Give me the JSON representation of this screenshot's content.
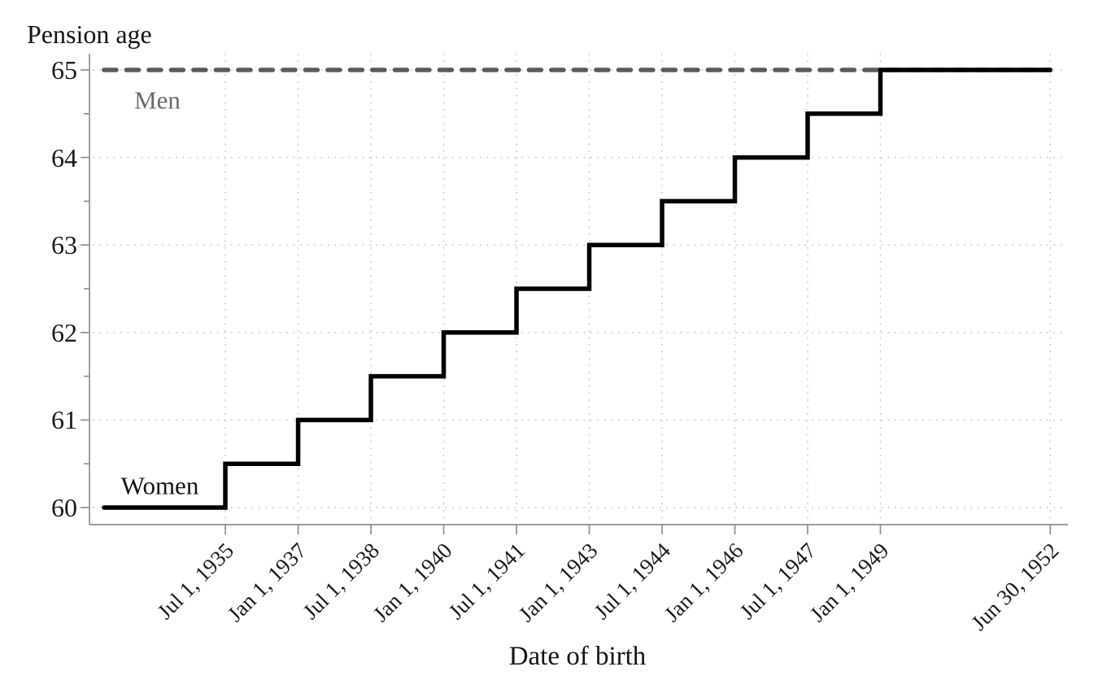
{
  "chart_data": {
    "type": "line",
    "title": "Pension age",
    "xlabel": "Date of birth",
    "ylabel": "Pension age",
    "xlim": [
      1932.7,
      1952.83
    ],
    "ylim": [
      60,
      65
    ],
    "grid": "dotted",
    "legend_position": "inline-annotations",
    "y_ticks": [
      {
        "label": "60",
        "value": 60
      },
      {
        "label": "61",
        "value": 61
      },
      {
        "label": "62",
        "value": 62
      },
      {
        "label": "63",
        "value": 63
      },
      {
        "label": "64",
        "value": 64
      },
      {
        "label": "65",
        "value": 65
      }
    ],
    "y_minor_ticks": [
      60.5,
      61.5,
      62.5,
      63.5,
      64.5
    ],
    "x_ticks": [
      {
        "label": "Jul 1, 1935",
        "value": 1935.5
      },
      {
        "label": "Jan 1, 1937",
        "value": 1937.0
      },
      {
        "label": "Jul 1, 1938",
        "value": 1938.5
      },
      {
        "label": "Jan 1, 1940",
        "value": 1940.0
      },
      {
        "label": "Jul 1, 1941",
        "value": 1941.5
      },
      {
        "label": "Jan 1, 1943",
        "value": 1943.0
      },
      {
        "label": "Jul 1, 1944",
        "value": 1944.5
      },
      {
        "label": "Jan 1, 1946",
        "value": 1946.0
      },
      {
        "label": "Jul 1, 1947",
        "value": 1947.5
      },
      {
        "label": "Jan 1, 1949",
        "value": 1949.0
      },
      {
        "label": "Jun 30, 1952",
        "value": 1952.5
      }
    ],
    "series": [
      {
        "name": "Men",
        "type": "constant",
        "style": "dashed",
        "color": "#5a5a5a",
        "value": 65,
        "x_start": 1933.0,
        "x_end": 1952.5
      },
      {
        "name": "Women",
        "type": "step",
        "style": "solid",
        "color": "#000000",
        "x_start": 1933.0,
        "x_end": 1952.5,
        "steps": [
          {
            "from": 1933.0,
            "pension_age": 60
          },
          {
            "from": 1935.5,
            "pension_age": 60.5
          },
          {
            "from": 1937.0,
            "pension_age": 61
          },
          {
            "from": 1938.5,
            "pension_age": 61.5
          },
          {
            "from": 1940.0,
            "pension_age": 62
          },
          {
            "from": 1941.5,
            "pension_age": 62.5
          },
          {
            "from": 1943.0,
            "pension_age": 63
          },
          {
            "from": 1944.5,
            "pension_age": 63.5
          },
          {
            "from": 1946.0,
            "pension_age": 64
          },
          {
            "from": 1947.5,
            "pension_age": 64.5
          },
          {
            "from": 1949.0,
            "pension_age": 65
          }
        ]
      }
    ],
    "annotations": [
      {
        "text": "Men",
        "x": 1934.1,
        "y": 64.66,
        "color": "#6a6a6a"
      },
      {
        "text": "Women",
        "x": 1934.15,
        "y": 60.25,
        "color": "#141414"
      }
    ],
    "colors": {
      "background": "#ffffff",
      "grid": "#c0c0c0",
      "axis": "#8f8f8f",
      "tick_label": "#1a1a1a"
    }
  }
}
